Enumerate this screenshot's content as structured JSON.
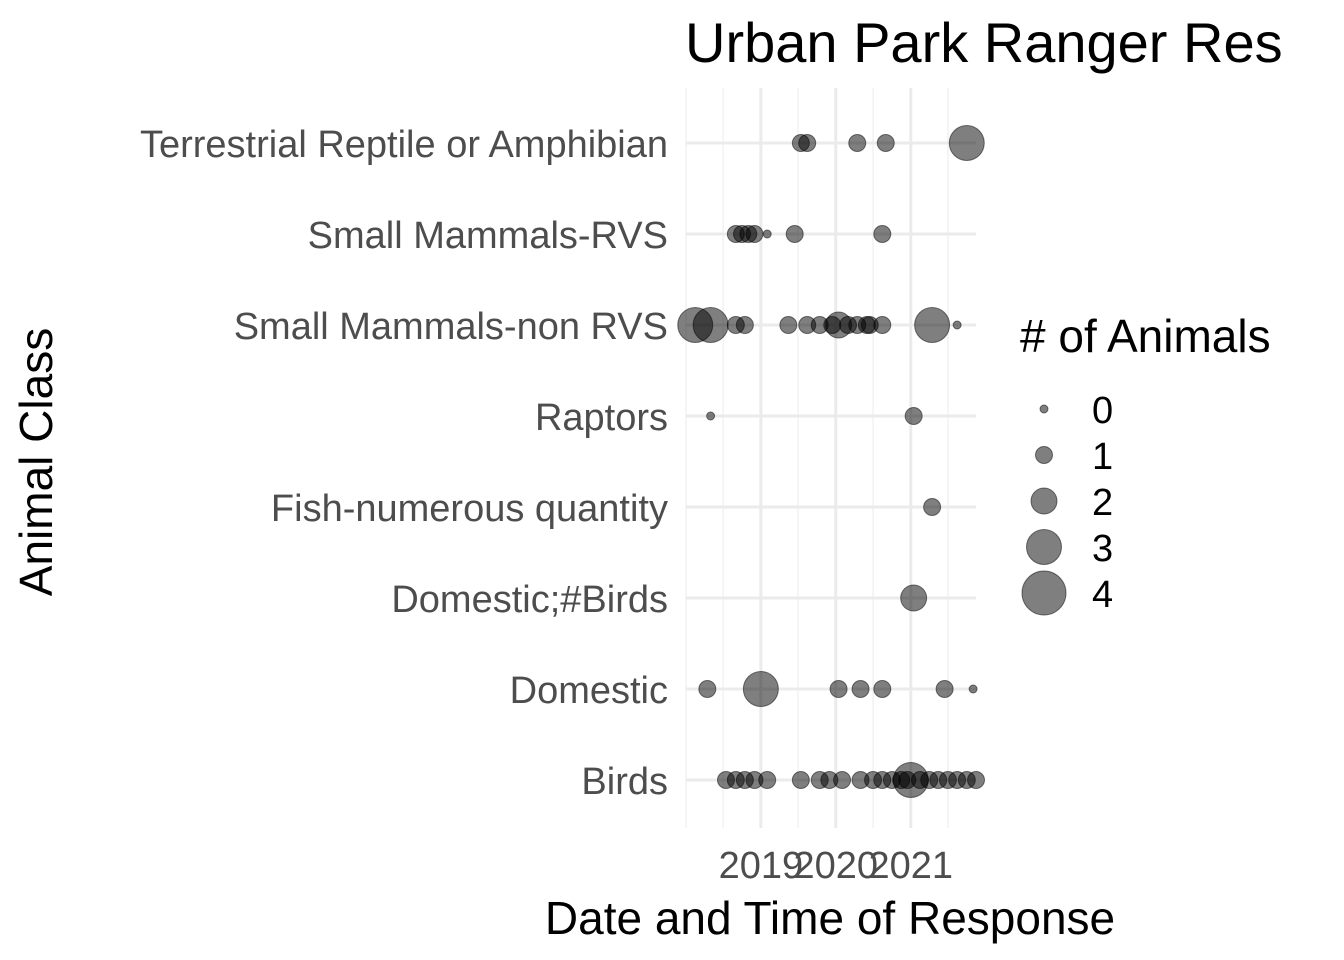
{
  "chart_data": {
    "type": "scatter",
    "title": "Urban Park Ranger Res",
    "xlabel": "Date and Time of Response",
    "ylabel": "Animal Class",
    "x_ticks": [
      "2019",
      "2020",
      "2021"
    ],
    "xlim": [
      "2018-01-01",
      "2021-11-15"
    ],
    "categories": [
      "Birds",
      "Domestic",
      "Domestic;#Birds",
      "Fish-numerous quantity",
      "Raptors",
      "Small Mammals-non RVS",
      "Small Mammals-RVS",
      "Terrestrial Reptile or Amphibian"
    ],
    "size_legend": {
      "title": "# of Animals",
      "position": "right",
      "values": [
        0,
        1,
        2,
        3,
        4
      ],
      "labels": [
        "0",
        "1",
        "2",
        "3",
        "4"
      ]
    },
    "grid": true,
    "point_color": "#000000",
    "point_alpha": 0.5,
    "points": [
      {
        "category": "Terrestrial Reptile or Amphibian",
        "x": "2019-07-15",
        "size": 1
      },
      {
        "category": "Terrestrial Reptile or Amphibian",
        "x": "2019-08-15",
        "size": 1
      },
      {
        "category": "Terrestrial Reptile or Amphibian",
        "x": "2020-09-01",
        "size": 1
      },
      {
        "category": "Terrestrial Reptile or Amphibian",
        "x": "2020-04-15",
        "size": 1
      },
      {
        "category": "Terrestrial Reptile or Amphibian",
        "x": "2021-10-01",
        "size": 3
      },
      {
        "category": "Small Mammals-RVS",
        "x": "2018-09-01",
        "size": 1
      },
      {
        "category": "Small Mammals-RVS",
        "x": "2018-10-01",
        "size": 1
      },
      {
        "category": "Small Mammals-RVS",
        "x": "2018-11-01",
        "size": 1
      },
      {
        "category": "Small Mammals-RVS",
        "x": "2018-12-01",
        "size": 1
      },
      {
        "category": "Small Mammals-RVS",
        "x": "2019-02-01",
        "size": 0
      },
      {
        "category": "Small Mammals-RVS",
        "x": "2019-06-15",
        "size": 1
      },
      {
        "category": "Small Mammals-RVS",
        "x": "2020-08-15",
        "size": 1
      },
      {
        "category": "Small Mammals-non RVS",
        "x": "2018-02-15",
        "size": 3
      },
      {
        "category": "Small Mammals-non RVS",
        "x": "2018-05-01",
        "size": 3
      },
      {
        "category": "Small Mammals-non RVS",
        "x": "2018-09-01",
        "size": 1
      },
      {
        "category": "Small Mammals-non RVS",
        "x": "2018-10-15",
        "size": 1
      },
      {
        "category": "Small Mammals-non RVS",
        "x": "2019-05-15",
        "size": 1
      },
      {
        "category": "Small Mammals-non RVS",
        "x": "2019-08-15",
        "size": 1
      },
      {
        "category": "Small Mammals-non RVS",
        "x": "2019-10-15",
        "size": 1
      },
      {
        "category": "Small Mammals-non RVS",
        "x": "2020-01-15",
        "size": 2
      },
      {
        "category": "Small Mammals-non RVS",
        "x": "2019-12-15",
        "size": 1
      },
      {
        "category": "Small Mammals-non RVS",
        "x": "2020-04-15",
        "size": 1
      },
      {
        "category": "Small Mammals-non RVS",
        "x": "2020-06-01",
        "size": 1
      },
      {
        "category": "Small Mammals-non RVS",
        "x": "2020-06-15",
        "size": 1
      },
      {
        "category": "Small Mammals-non RVS",
        "x": "2020-08-15",
        "size": 1
      },
      {
        "category": "Small Mammals-non RVS",
        "x": "2020-03-01",
        "size": 1
      },
      {
        "category": "Small Mammals-non RVS",
        "x": "2021-04-15",
        "size": 3
      },
      {
        "category": "Small Mammals-non RVS",
        "x": "2021-08-15",
        "size": 0
      },
      {
        "category": "Raptors",
        "x": "2018-05-01",
        "size": 0
      },
      {
        "category": "Raptors",
        "x": "2021-01-15",
        "size": 1
      },
      {
        "category": "Fish-numerous quantity",
        "x": "2021-04-15",
        "size": 1
      },
      {
        "category": "Domestic;#Birds",
        "x": "2021-01-15",
        "size": 2
      },
      {
        "category": "Domestic",
        "x": "2018-04-15",
        "size": 1
      },
      {
        "category": "Domestic",
        "x": "2019-01-01",
        "size": 3
      },
      {
        "category": "Domestic",
        "x": "2020-01-15",
        "size": 1
      },
      {
        "category": "Domestic",
        "x": "2020-05-01",
        "size": 1
      },
      {
        "category": "Domestic",
        "x": "2020-08-15",
        "size": 1
      },
      {
        "category": "Domestic",
        "x": "2021-06-15",
        "size": 1
      },
      {
        "category": "Domestic",
        "x": "2021-11-01",
        "size": 0
      },
      {
        "category": "Birds",
        "x": "2018-07-15",
        "size": 1
      },
      {
        "category": "Birds",
        "x": "2018-09-01",
        "size": 1
      },
      {
        "category": "Birds",
        "x": "2018-10-15",
        "size": 1
      },
      {
        "category": "Birds",
        "x": "2018-12-01",
        "size": 1
      },
      {
        "category": "Birds",
        "x": "2019-02-01",
        "size": 1
      },
      {
        "category": "Birds",
        "x": "2019-07-15",
        "size": 1
      },
      {
        "category": "Birds",
        "x": "2019-10-15",
        "size": 1
      },
      {
        "category": "Birds",
        "x": "2019-12-01",
        "size": 1
      },
      {
        "category": "Birds",
        "x": "2020-02-01",
        "size": 1
      },
      {
        "category": "Birds",
        "x": "2020-05-01",
        "size": 1
      },
      {
        "category": "Birds",
        "x": "2020-07-01",
        "size": 1
      },
      {
        "category": "Birds",
        "x": "2020-08-15",
        "size": 1
      },
      {
        "category": "Birds",
        "x": "2020-10-01",
        "size": 1
      },
      {
        "category": "Birds",
        "x": "2020-11-15",
        "size": 1
      },
      {
        "category": "Birds",
        "x": "2020-12-15",
        "size": 1
      },
      {
        "category": "Birds",
        "x": "2021-01-01",
        "size": 3
      },
      {
        "category": "Birds",
        "x": "2021-02-15",
        "size": 1
      },
      {
        "category": "Birds",
        "x": "2021-04-01",
        "size": 1
      },
      {
        "category": "Birds",
        "x": "2021-05-15",
        "size": 1
      },
      {
        "category": "Birds",
        "x": "2021-07-01",
        "size": 1
      },
      {
        "category": "Birds",
        "x": "2021-08-15",
        "size": 1
      },
      {
        "category": "Birds",
        "x": "2021-10-01",
        "size": 1
      },
      {
        "category": "Birds",
        "x": "2021-11-15",
        "size": 1
      }
    ]
  }
}
